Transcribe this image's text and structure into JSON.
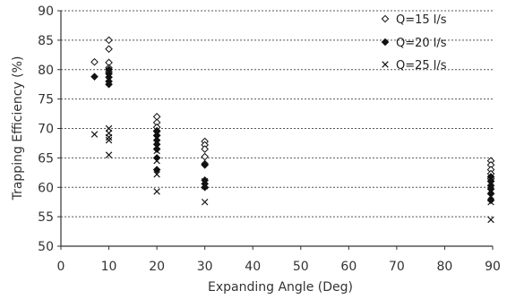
{
  "chart_data": {
    "type": "scatter",
    "title": "",
    "xlabel": "Expanding Angle (Deg)",
    "ylabel": "Trapping Efficiency (%)",
    "xlim": [
      0,
      90
    ],
    "ylim": [
      50,
      90
    ],
    "xticks": [
      "0",
      "10",
      "20",
      "30",
      "40",
      "50",
      "60",
      "70",
      "80",
      "90"
    ],
    "yticks": [
      "50",
      "55",
      "60",
      "65",
      "70",
      "75",
      "80",
      "85",
      "90"
    ],
    "grid": "horizontal dashed",
    "legend_position": "top-right",
    "series": [
      {
        "name": "Q=15 l/s",
        "marker": "open-diamond",
        "points": [
          [
            7,
            81.3
          ],
          [
            10,
            85
          ],
          [
            10,
            83.5
          ],
          [
            10,
            81.2
          ],
          [
            10,
            80.3
          ],
          [
            10,
            79.6
          ],
          [
            20,
            72
          ],
          [
            20,
            71
          ],
          [
            20,
            70.2
          ],
          [
            20,
            69.5
          ],
          [
            20,
            68.8
          ],
          [
            30,
            67.8
          ],
          [
            30,
            67.2
          ],
          [
            30,
            66.5
          ],
          [
            30,
            65.2
          ],
          [
            30,
            64
          ],
          [
            90,
            64.5
          ],
          [
            90,
            63.8
          ],
          [
            90,
            63
          ],
          [
            90,
            62.3
          ],
          [
            90,
            61.5
          ]
        ]
      },
      {
        "name": "Q=20 l/s",
        "marker": "filled-diamond",
        "points": [
          [
            7,
            78.8
          ],
          [
            10,
            80
          ],
          [
            10,
            79.3
          ],
          [
            10,
            78.7
          ],
          [
            10,
            78
          ],
          [
            10,
            77.5
          ],
          [
            20,
            69.6
          ],
          [
            20,
            68.8
          ],
          [
            20,
            68
          ],
          [
            20,
            67.3
          ],
          [
            20,
            66.5
          ],
          [
            20,
            65
          ],
          [
            20,
            63
          ],
          [
            30,
            63.8
          ],
          [
            30,
            61.2
          ],
          [
            30,
            60.6
          ],
          [
            30,
            60
          ],
          [
            90,
            61.8
          ],
          [
            90,
            61
          ],
          [
            90,
            60.3
          ],
          [
            90,
            59.7
          ],
          [
            90,
            58.9
          ],
          [
            90,
            57.8
          ]
        ]
      },
      {
        "name": "Q=25 l/s",
        "marker": "x",
        "points": [
          [
            7,
            69
          ],
          [
            10,
            70
          ],
          [
            10,
            69.2
          ],
          [
            10,
            68.5
          ],
          [
            10,
            68
          ],
          [
            10,
            65.5
          ],
          [
            20,
            66.2
          ],
          [
            20,
            64.5
          ],
          [
            20,
            62.2
          ],
          [
            20,
            59.3
          ],
          [
            30,
            61
          ],
          [
            30,
            60.2
          ],
          [
            30,
            57.5
          ],
          [
            90,
            60.8
          ],
          [
            90,
            59.5
          ],
          [
            90,
            58.5
          ],
          [
            90,
            57.5
          ],
          [
            90,
            54.5
          ]
        ]
      }
    ]
  }
}
